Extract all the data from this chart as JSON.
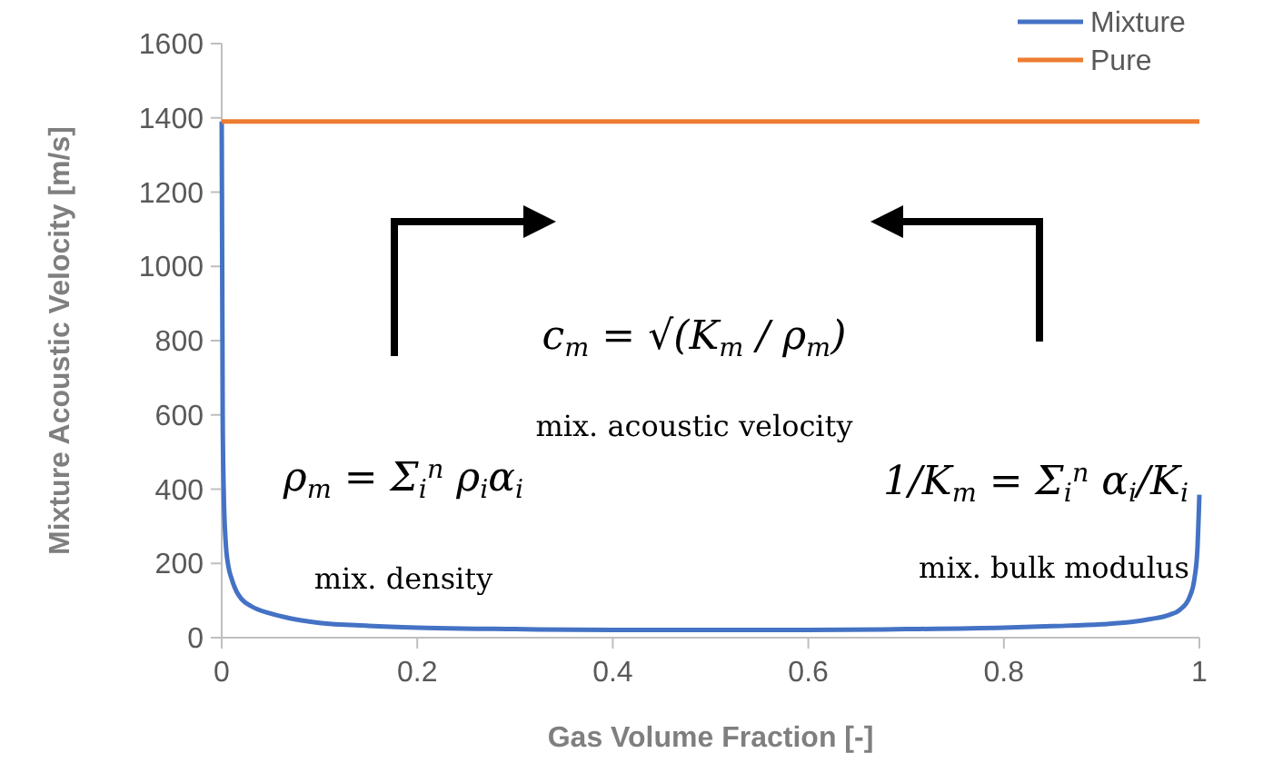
{
  "chart_data": {
    "type": "line",
    "xlabel": "Gas Volume Fraction [-]",
    "ylabel": "Mixture Acoustic Velocity  [m/s]",
    "xlim": [
      0,
      1
    ],
    "xticks": [
      0,
      0.2,
      0.4,
      0.6,
      0.8,
      1
    ],
    "ylim": [
      0,
      1600
    ],
    "yticks": [
      0,
      200,
      400,
      600,
      800,
      1000,
      1200,
      1400,
      1600
    ],
    "grid": false,
    "legend": "top right",
    "marker": "none",
    "line_style": "solid",
    "series": [
      {
        "name": "Mixture",
        "color": "#4472c4",
        "x": [
          0,
          0.001,
          0.002,
          0.004,
          0.007,
          0.01,
          0.015,
          0.02,
          0.03,
          0.05,
          0.07,
          0.1,
          0.15,
          0.2,
          0.3,
          0.4,
          0.5,
          0.6,
          0.7,
          0.8,
          0.85,
          0.9,
          0.93,
          0.95,
          0.97,
          0.98,
          0.99,
          0.995,
          0.998,
          1
        ],
        "values": [
          1390,
          600,
          400,
          260,
          190,
          160,
          125,
          105,
          85,
          65,
          52,
          40,
          32,
          27,
          23,
          21,
          21,
          21,
          23,
          27,
          31,
          36,
          42,
          50,
          62,
          75,
          110,
          160,
          240,
          385
        ]
      },
      {
        "name": "Pure",
        "color": "#ed7d31",
        "x": [
          0,
          1
        ],
        "values": [
          1390,
          1390
        ]
      }
    ],
    "annotations": [
      "c$_{m}$ = √(K$_{m}$ / ρ$_{m}$)",
      "mix. acoustic velocity",
      "ρ$_{m}$ = Σ$_{i}$$^{n}$ ρ$_{i}$α$_{i}$",
      "mix. density",
      "1/K$_{m}$ = Σ$_{i}$$^{n}$ α$_{i}$/K$_{i}$",
      "mix. bulk modulus"
    ]
  }
}
